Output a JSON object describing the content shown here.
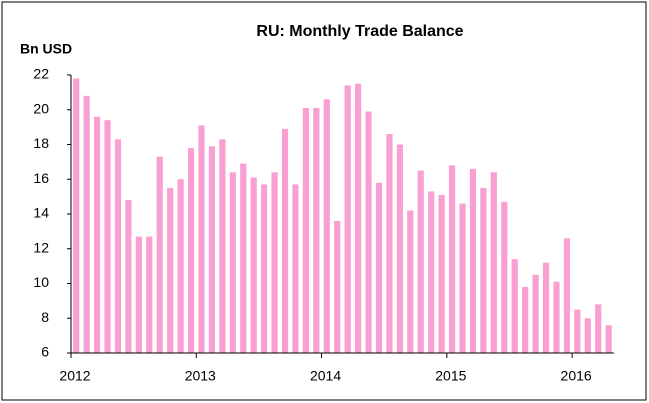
{
  "chart_data": {
    "type": "bar",
    "title": "RU: Monthly Trade Balance",
    "y_label": "Bn USD",
    "categories": [
      "2012",
      null,
      null,
      null,
      null,
      null,
      null,
      null,
      null,
      null,
      null,
      null,
      "2013",
      null,
      null,
      null,
      null,
      null,
      null,
      null,
      null,
      null,
      null,
      null,
      "2014",
      null,
      null,
      null,
      null,
      null,
      null,
      null,
      null,
      null,
      null,
      null,
      "2015",
      null,
      null,
      null,
      null,
      null,
      null,
      null,
      null,
      null,
      null,
      null,
      "2016",
      null,
      null,
      null
    ],
    "values": [
      21.8,
      20.8,
      19.6,
      19.4,
      18.3,
      14.8,
      12.7,
      12.7,
      17.3,
      15.5,
      16.0,
      17.8,
      19.1,
      17.9,
      18.3,
      16.4,
      16.9,
      16.1,
      15.7,
      16.4,
      18.9,
      15.7,
      20.1,
      20.1,
      20.6,
      13.6,
      21.4,
      21.5,
      19.9,
      15.8,
      18.6,
      18.0,
      14.2,
      16.5,
      15.3,
      15.1,
      16.8,
      14.6,
      16.6,
      15.5,
      16.4,
      14.7,
      11.4,
      9.8,
      10.5,
      11.2,
      10.1,
      12.6,
      8.5,
      8.0,
      8.8,
      7.6
    ],
    "color": "#fa9fd2",
    "ylim": [
      6,
      22
    ],
    "yticks": [
      6,
      8,
      10,
      12,
      14,
      16,
      18,
      20,
      22
    ],
    "grid": false
  }
}
